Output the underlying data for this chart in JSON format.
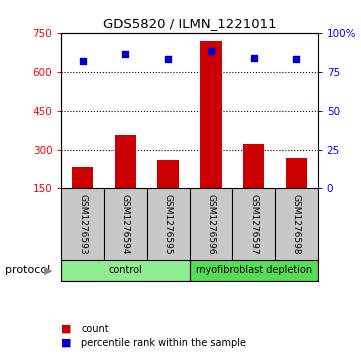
{
  "title": "GDS5820 / ILMN_1221011",
  "samples": [
    "GSM1276593",
    "GSM1276594",
    "GSM1276595",
    "GSM1276596",
    "GSM1276597",
    "GSM1276598"
  ],
  "bar_values": [
    232,
    355,
    258,
    718,
    322,
    268
  ],
  "scatter_values": [
    82,
    86,
    83,
    88,
    84,
    83
  ],
  "ylim_left": [
    150,
    750
  ],
  "yticks_left": [
    150,
    300,
    450,
    600,
    750
  ],
  "ylim_right": [
    0,
    100
  ],
  "yticks_right": [
    0,
    25,
    50,
    75,
    100
  ],
  "ytick_labels_right": [
    "0",
    "25",
    "50",
    "75",
    "100%"
  ],
  "bar_color": "#cc0000",
  "scatter_color": "#0000cc",
  "grid_lines": [
    300,
    450,
    600
  ],
  "protocol_groups": [
    {
      "label": "control",
      "start": 0,
      "end": 3,
      "color": "#90ee90"
    },
    {
      "label": "myofibroblast depletion",
      "start": 3,
      "end": 6,
      "color": "#55dd55"
    }
  ],
  "legend_items": [
    {
      "color": "#cc0000",
      "label": "count"
    },
    {
      "color": "#0000cc",
      "label": "percentile rank within the sample"
    }
  ],
  "protocol_label": "protocol",
  "label_bg_color": "#c8c8c8",
  "fig_bg": "#ffffff"
}
